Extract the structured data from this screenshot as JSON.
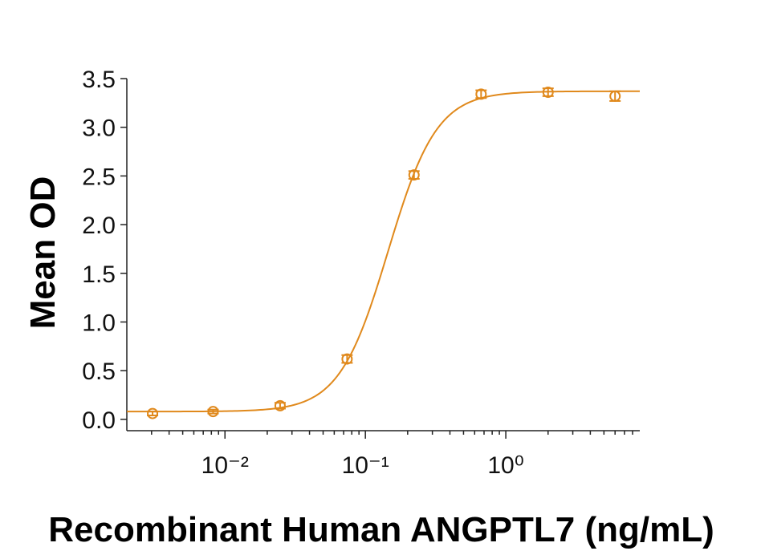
{
  "chart_data": {
    "type": "scatter",
    "x_label": "Recombinant Human ANGPTL7 (ng/mL)",
    "y_label": "Mean OD",
    "x_scale": "log",
    "color": "#e0891c",
    "xlim": [
      0.002,
      9
    ],
    "ylim": [
      -0.1,
      3.5
    ],
    "xticks": [
      {
        "value": 0.01,
        "label": "10⁻²"
      },
      {
        "value": 0.1,
        "label": "10⁻¹"
      },
      {
        "value": 1,
        "label": "10⁰"
      }
    ],
    "xminorticks": [
      0.003,
      0.004,
      0.005,
      0.006,
      0.007,
      0.008,
      0.009,
      0.02,
      0.03,
      0.04,
      0.05,
      0.06,
      0.07,
      0.08,
      0.09,
      0.2,
      0.3,
      0.4,
      0.5,
      0.6,
      0.7,
      0.8,
      0.9,
      2,
      3,
      4,
      5,
      6,
      7,
      8
    ],
    "yticks": [
      {
        "value": 0,
        "label": "0.0"
      },
      0.5,
      {
        "value": 1,
        "label": "1.0"
      },
      1.5,
      {
        "value": 2,
        "label": "2.0"
      },
      2.5,
      {
        "value": 3,
        "label": "3.0"
      },
      3.5
    ],
    "x": [
      0.00305,
      0.00823,
      0.0247,
      0.0741,
      0.222,
      0.667,
      2,
      6
    ],
    "values": [
      0.06,
      0.08,
      0.14,
      0.62,
      2.51,
      3.34,
      3.36,
      3.32
    ],
    "errors": [
      0.02,
      0.02,
      0.03,
      0.04,
      0.04,
      0.04,
      0.04,
      0.05
    ],
    "fit": {
      "bottom": 0.08,
      "top": 3.37,
      "ec50": 0.145,
      "hill": 2.5
    }
  }
}
